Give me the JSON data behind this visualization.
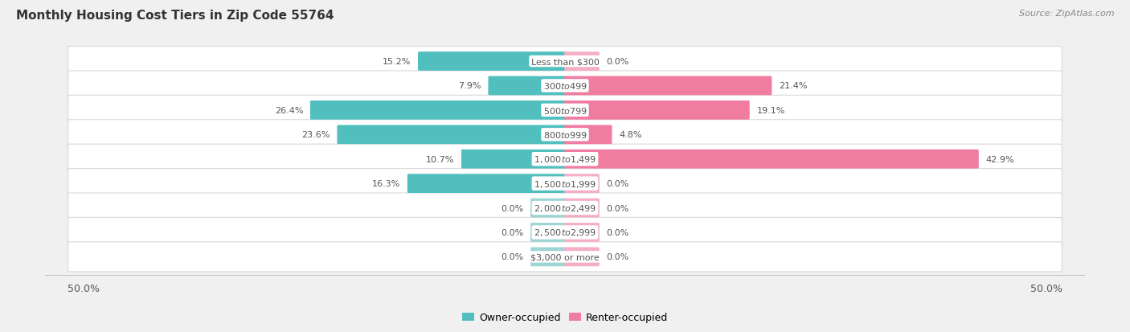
{
  "title": "Monthly Housing Cost Tiers in Zip Code 55764",
  "source": "Source: ZipAtlas.com",
  "categories": [
    "Less than $300",
    "$300 to $499",
    "$500 to $799",
    "$800 to $999",
    "$1,000 to $1,499",
    "$1,500 to $1,999",
    "$2,000 to $2,499",
    "$2,500 to $2,999",
    "$3,000 or more"
  ],
  "owner_values": [
    15.2,
    7.9,
    26.4,
    23.6,
    10.7,
    16.3,
    0.0,
    0.0,
    0.0
  ],
  "renter_values": [
    0.0,
    21.4,
    19.1,
    4.8,
    42.9,
    0.0,
    0.0,
    0.0,
    0.0
  ],
  "owner_color": "#52bfbf",
  "renter_color": "#f07ca0",
  "owner_color_zero": "#9dd4d4",
  "renter_color_zero": "#f5aec5",
  "background_color": "#f0f0f0",
  "bar_background": "#ffffff",
  "bar_border_color": "#d8d8d8",
  "axis_max": 50.0,
  "text_color": "#555555",
  "title_fontsize": 11,
  "source_fontsize": 8,
  "legend_fontsize": 9,
  "value_fontsize": 8,
  "cat_fontsize": 8,
  "bar_height": 0.62,
  "zero_stub": 3.5
}
